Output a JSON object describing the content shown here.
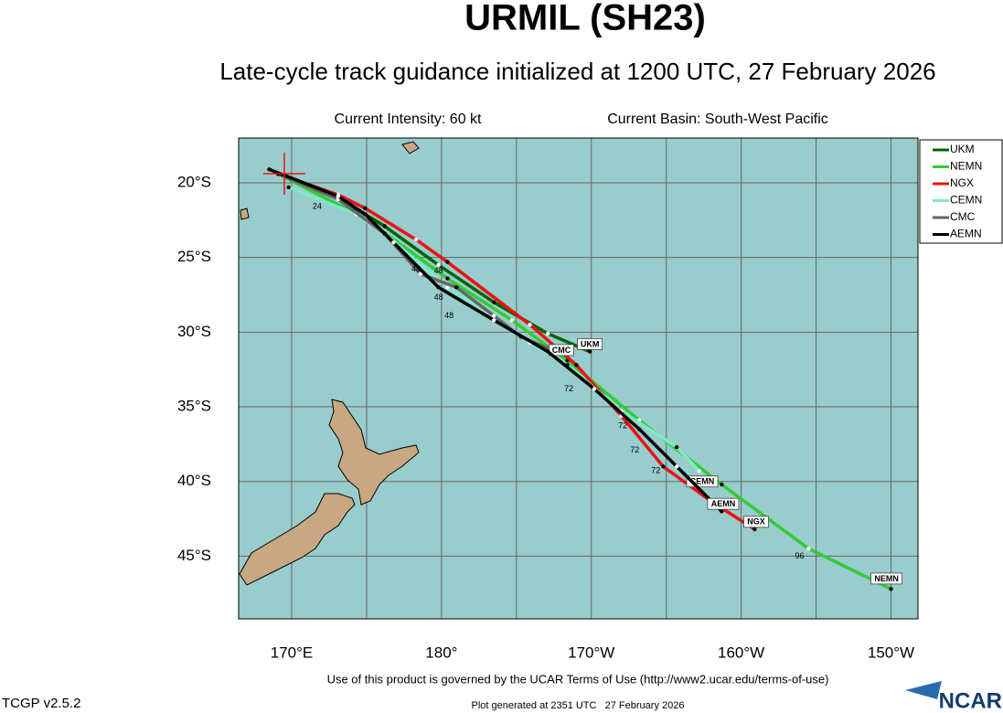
{
  "header": {
    "title": "URMIL (SH23)",
    "subtitle": "Late-cycle track guidance initialized at 1200 UTC, 27 February 2026",
    "intensity": "Current Intensity: 60 kt",
    "basin": "Current Basin: South-West Pacific"
  },
  "map": {
    "xlim": [
      166.46,
      211.8
    ],
    "ylim": [
      -49.2,
      -17
    ],
    "xticks": [
      {
        "value": 170,
        "label": "170°E"
      },
      {
        "value": 180,
        "label": "180°"
      },
      {
        "value": 190,
        "label": "170°W"
      },
      {
        "value": 200,
        "label": "160°W"
      },
      {
        "value": 210,
        "label": "150°W"
      }
    ],
    "xgrid": [
      170,
      175,
      180,
      185,
      190,
      195,
      200,
      205,
      210
    ],
    "yticks": [
      {
        "value": -20,
        "label": "20°S"
      },
      {
        "value": -25,
        "label": "25°S"
      },
      {
        "value": -30,
        "label": "30°S"
      },
      {
        "value": -35,
        "label": "35°S"
      },
      {
        "value": -40,
        "label": "40°S"
      },
      {
        "value": -45,
        "label": "45°S"
      }
    ],
    "tracks": [
      {
        "name": "UKM",
        "color": "#006400",
        "lon": [
          169.1,
          173.1,
          176.2,
          179.8,
          183.5,
          187.1,
          189.9
        ],
        "lat": [
          -19.4,
          -21.0,
          -22.9,
          -25.5,
          -28.0,
          -30.1,
          -31.3
        ],
        "end_label": {
          "lon": 189.9,
          "lat": -30.8
        }
      },
      {
        "name": "NEMN",
        "color": "#33cc33",
        "lon": [
          169.1,
          174.9,
          180.4,
          184.7,
          188.4,
          193.2,
          198.7,
          204.5,
          210.0
        ],
        "lat": [
          -19.4,
          -22.4,
          -26.4,
          -29.2,
          -31.9,
          -35.9,
          -40.2,
          -44.5,
          -47.2
        ],
        "end_label": {
          "lon": 209.7,
          "lat": -46.5
        }
      },
      {
        "name": "NGX",
        "color": "#ee1111",
        "lon": [
          169.1,
          173.1,
          174.9,
          178.3,
          180.4,
          185.9,
          189.0,
          192.0,
          194.8,
          198.1,
          200.9
        ],
        "lat": [
          -19.4,
          -20.8,
          -21.7,
          -23.8,
          -25.3,
          -29.5,
          -32.2,
          -35.6,
          -39.0,
          -41.4,
          -43.2
        ],
        "end_label": {
          "lon": 201.0,
          "lat": -42.7
        }
      },
      {
        "name": "CEMN",
        "color": "#7fe8c8",
        "lon": [
          169.8,
          174.3,
          176.2,
          180.4,
          183.5,
          185.9,
          188.4,
          192.0,
          195.7,
          197.2
        ],
        "lat": [
          -20.3,
          -22.1,
          -23.4,
          -27.0,
          -28.9,
          -30.7,
          -32.2,
          -35.3,
          -37.7,
          -39.3
        ],
        "end_label": {
          "lon": 197.4,
          "lat": -40.0
        }
      },
      {
        "name": "CMC",
        "color": "#666666",
        "lon": [
          169.1,
          173.1,
          176.2,
          178.6,
          181.0,
          183.5,
          185.3,
          187.4
        ],
        "lat": [
          -19.4,
          -21.1,
          -23.4,
          -26.1,
          -27.0,
          -28.9,
          -30.3,
          -31.2
        ],
        "end_label": {
          "lon": 188.0,
          "lat": -31.2
        }
      },
      {
        "name": "AEMN",
        "color": "#000000",
        "lon": [
          168.5,
          173.1,
          174.9,
          176.8,
          179.8,
          183.5,
          187.1,
          190.2,
          193.2,
          195.7,
          198.7
        ],
        "lat": [
          -19.1,
          -20.9,
          -22.1,
          -24.0,
          -27.0,
          -29.2,
          -31.3,
          -33.8,
          -36.5,
          -39.0,
          -42.0
        ],
        "end_label": {
          "lon": 198.8,
          "lat": -41.5
        }
      }
    ],
    "hour_labels": [
      {
        "text": "24",
        "lon": 171.7,
        "lat": -21.6
      },
      {
        "text": "48",
        "lon": 178.3,
        "lat": -25.8
      },
      {
        "text": "48",
        "lon": 179.8,
        "lat": -25.9
      },
      {
        "text": "48",
        "lon": 179.8,
        "lat": -27.7
      },
      {
        "text": "48",
        "lon": 180.5,
        "lat": -28.9
      },
      {
        "text": "72",
        "lon": 188.5,
        "lat": -33.8
      },
      {
        "text": "72",
        "lon": 192.1,
        "lat": -36.3
      },
      {
        "text": "72",
        "lon": 192.9,
        "lat": -37.9
      },
      {
        "text": "72",
        "lon": 194.3,
        "lat": -39.3
      },
      {
        "text": "96",
        "lon": 203.9,
        "lat": -45.0
      }
    ]
  },
  "footer": {
    "terms": "Use of this product is governed by the UCAR Terms of Use (http://www2.ucar.edu/terms-of-use)",
    "version": "TCGP v2.5.2",
    "generated": "Plot generated at 2351 UTC   27 February 2026",
    "logo": "NCAR"
  }
}
